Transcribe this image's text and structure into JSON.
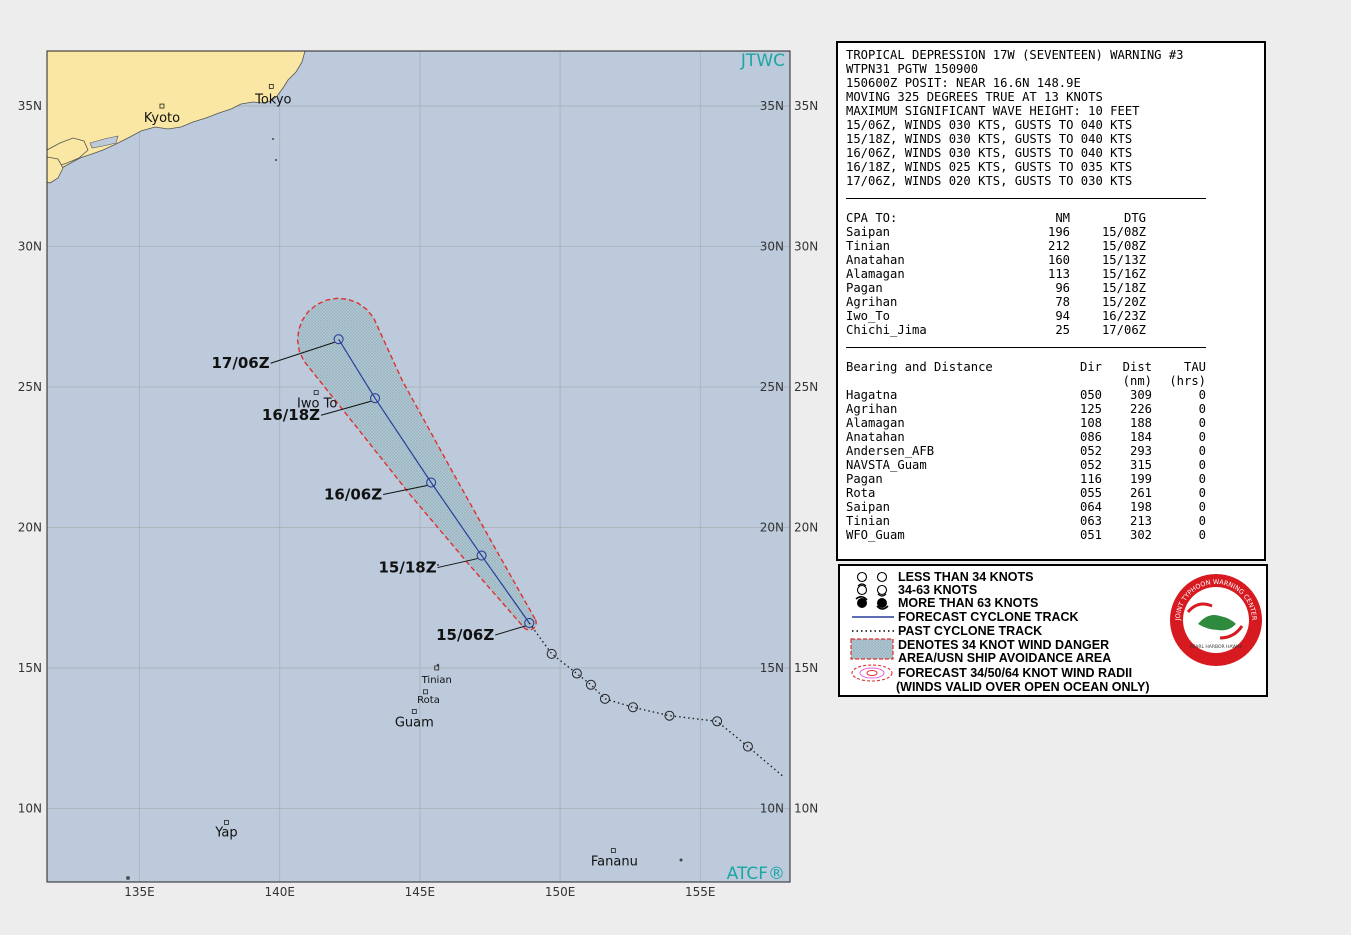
{
  "map": {
    "corner_labels": {
      "top_right": "JTWC",
      "bottom_right": "ATCF®"
    },
    "lat_ticks": [
      {
        "lat": 35,
        "label": "35N"
      },
      {
        "lat": 30,
        "label": "30N"
      },
      {
        "lat": 25,
        "label": "25N"
      },
      {
        "lat": 20,
        "label": "20N"
      },
      {
        "lat": 15,
        "label": "15N"
      },
      {
        "lat": 10,
        "label": "10N"
      }
    ],
    "lon_ticks": [
      {
        "lon": 135,
        "label": "135E"
      },
      {
        "lon": 140,
        "label": "140E"
      },
      {
        "lon": 145,
        "label": "145E"
      },
      {
        "lon": 150,
        "label": "150E"
      },
      {
        "lon": 155,
        "label": "155E"
      }
    ],
    "places": [
      {
        "name": "Kyoto",
        "lat": 35.0,
        "lon": 135.8,
        "size": "normal"
      },
      {
        "name": "Tokyo",
        "lat": 35.7,
        "lon": 139.7,
        "size": "normal"
      },
      {
        "name": "Iwo To",
        "lat": 24.8,
        "lon": 141.3,
        "size": "normal"
      },
      {
        "name": "Tinian",
        "lat": 15.0,
        "lon": 145.6,
        "size": "small"
      },
      {
        "name": "Rota",
        "lat": 14.15,
        "lon": 145.2,
        "size": "small"
      },
      {
        "name": "Guam",
        "lat": 13.45,
        "lon": 144.8,
        "size": "normal"
      },
      {
        "name": "Yap",
        "lat": 9.5,
        "lon": 138.1,
        "size": "normal"
      },
      {
        "name": "Fananu",
        "lat": 8.5,
        "lon": 151.9,
        "size": "normal"
      }
    ],
    "forecast_track": [
      {
        "lat": 16.6,
        "lon": 148.9,
        "label": "15/06Z"
      },
      {
        "lat": 19.0,
        "lon": 147.2,
        "label": "15/18Z"
      },
      {
        "lat": 21.6,
        "lon": 145.4,
        "label": "16/06Z"
      },
      {
        "lat": 24.6,
        "lon": 143.4,
        "label": "16/18Z"
      },
      {
        "lat": 26.7,
        "lon": 142.1,
        "label": "17/06Z"
      }
    ],
    "past_track": [
      {
        "lat": 16.6,
        "lon": 148.9
      },
      {
        "lat": 15.5,
        "lon": 149.7
      },
      {
        "lat": 14.8,
        "lon": 150.6
      },
      {
        "lat": 14.4,
        "lon": 151.1
      },
      {
        "lat": 13.9,
        "lon": 151.6
      },
      {
        "lat": 13.6,
        "lon": 152.6
      },
      {
        "lat": 13.3,
        "lon": 153.9
      },
      {
        "lat": 13.1,
        "lon": 155.6
      },
      {
        "lat": 12.2,
        "lon": 156.7
      },
      {
        "lat": 11.1,
        "lon": 158.0
      }
    ],
    "colors": {
      "ocean": "#bccadc",
      "land": "#f9e7a3",
      "track": "#2a3f9b",
      "danger": "#e03030"
    }
  },
  "warning": {
    "header_lines": [
      "TROPICAL DEPRESSION 17W (SEVENTEEN) WARNING #3",
      "WTPN31 PGTW 150900",
      "150600Z POSIT: NEAR 16.6N 148.9E",
      "MOVING 325 DEGREES TRUE AT 13 KNOTS",
      "MAXIMUM SIGNIFICANT WAVE HEIGHT: 10 FEET",
      "15/06Z, WINDS 030 KTS, GUSTS TO 040 KTS",
      "15/18Z, WINDS 030 KTS, GUSTS TO 040 KTS",
      "16/06Z, WINDS 030 KTS, GUSTS TO 040 KTS",
      "16/18Z, WINDS 025 KTS, GUSTS TO 035 KTS",
      "17/06Z, WINDS 020 KTS, GUSTS TO 030 KTS"
    ],
    "cpa": {
      "headers": [
        "CPA TO:",
        "NM",
        "DTG"
      ],
      "rows": [
        [
          "Saipan",
          "196",
          "15/08Z"
        ],
        [
          "Tinian",
          "212",
          "15/08Z"
        ],
        [
          "Anatahan",
          "160",
          "15/13Z"
        ],
        [
          "Alamagan",
          "113",
          "15/16Z"
        ],
        [
          "Pagan",
          "96",
          "15/18Z"
        ],
        [
          "Agrihan",
          "78",
          "15/20Z"
        ],
        [
          "Iwo_To",
          "94",
          "16/23Z"
        ],
        [
          "Chichi_Jima",
          "25",
          "17/06Z"
        ]
      ]
    },
    "bearing": {
      "headers": [
        "Bearing and Distance",
        "Dir",
        "Dist",
        "TAU"
      ],
      "subheaders": [
        "",
        "",
        "(nm)",
        "(hrs)"
      ],
      "rows": [
        [
          "Hagatna",
          "050",
          "309",
          "0"
        ],
        [
          "Agrihan",
          "125",
          "226",
          "0"
        ],
        [
          "Alamagan",
          "108",
          "188",
          "0"
        ],
        [
          "Anatahan",
          "086",
          "184",
          "0"
        ],
        [
          "Andersen_AFB",
          "052",
          "293",
          "0"
        ],
        [
          "NAVSTA_Guam",
          "052",
          "315",
          "0"
        ],
        [
          "Pagan",
          "116",
          "199",
          "0"
        ],
        [
          "Rota",
          "055",
          "261",
          "0"
        ],
        [
          "Saipan",
          "064",
          "198",
          "0"
        ],
        [
          "Tinian",
          "063",
          "213",
          "0"
        ],
        [
          "WFO_Guam",
          "051",
          "302",
          "0"
        ]
      ]
    }
  },
  "legend": {
    "items": [
      {
        "symbol": "open-circle-icon",
        "text": "LESS THAN 34 KNOTS"
      },
      {
        "symbol": "half-filled-storm-icon",
        "text": "34-63 KNOTS"
      },
      {
        "symbol": "filled-storm-icon",
        "text": "MORE THAN 63 KNOTS"
      },
      {
        "symbol": "forecast-track-line-icon",
        "text": "FORECAST CYCLONE TRACK"
      },
      {
        "symbol": "past-track-dotted-icon",
        "text": "PAST CYCLONE TRACK"
      },
      {
        "symbol": "danger-area-icon",
        "text": "DENOTES 34 KNOT WIND DANGER"
      },
      {
        "symbol": "",
        "text": "AREA/USN SHIP AVOIDANCE AREA"
      },
      {
        "symbol": "wind-radii-icon",
        "text": "FORECAST 34/50/64 KNOT WIND RADII"
      },
      {
        "symbol": "",
        "text": "(WINDS VALID OVER OPEN OCEAN ONLY)"
      }
    ],
    "logo": {
      "text_top": "JOINT TYPHOON WARNING CENTER",
      "text_bottom": "PEARL HARBOR HAWAII"
    }
  }
}
